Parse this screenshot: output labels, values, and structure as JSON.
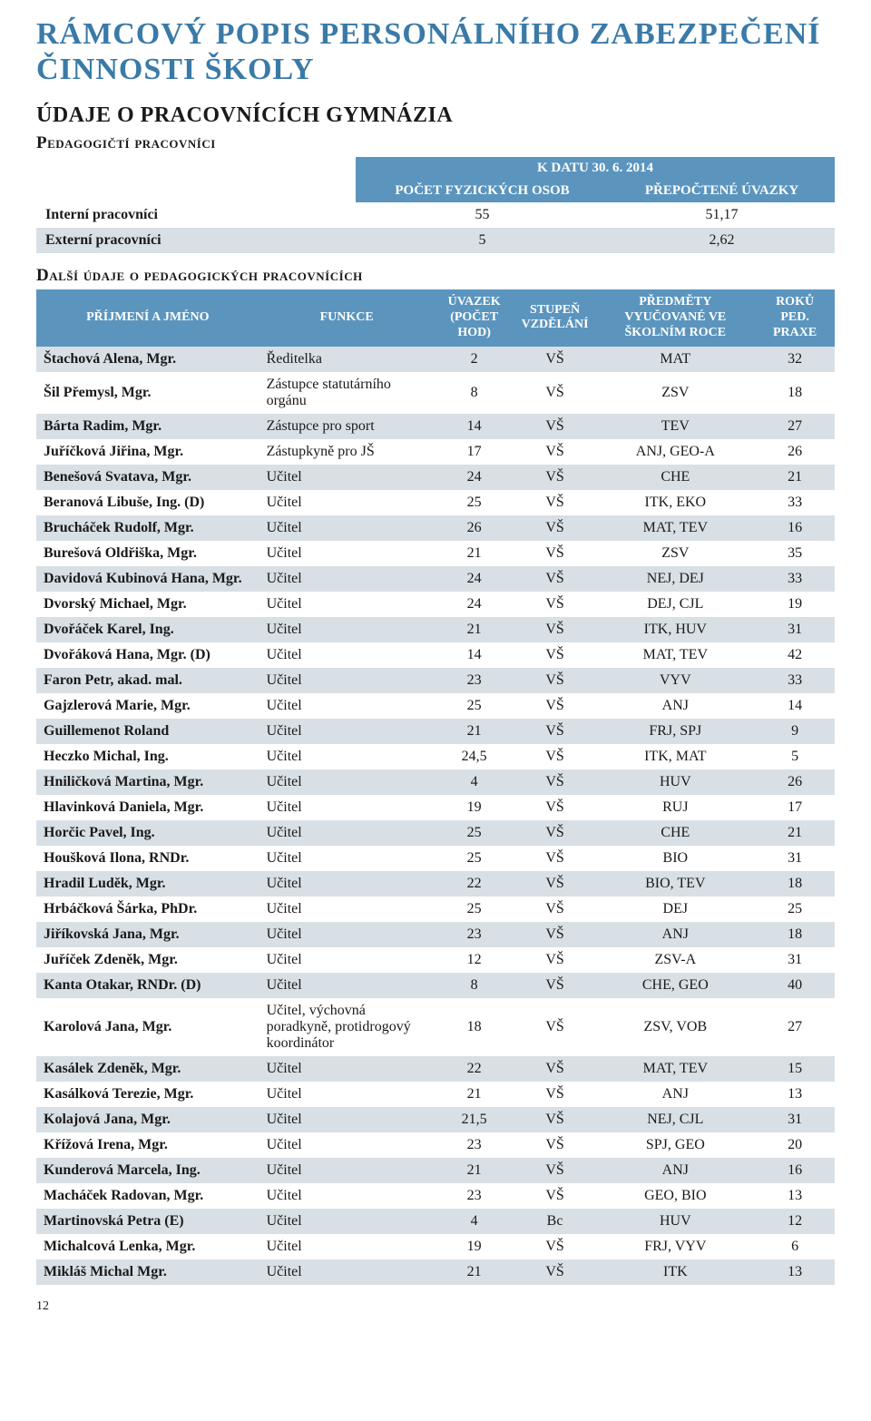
{
  "title": "Rámcový popis personálního zabezpečení činnosti školy",
  "section": "Údaje o pracovnících gymnázia",
  "subsection": "Pedagogičtí pracovníci",
  "summary_table": {
    "top_header": "K DATU 30. 6. 2014",
    "col_a": "POČET FYZICKÝCH OSOB",
    "col_b": "PŘEPOČTENÉ ÚVAZKY",
    "rows": [
      {
        "label": "Interní pracovníci",
        "a": "55",
        "b": "51,17"
      },
      {
        "label": "Externí pracovníci",
        "a": "5",
        "b": "2,62"
      }
    ]
  },
  "staff_heading": "Další údaje o pedagogických pracovnících",
  "staff_table": {
    "headers": {
      "name": "PŘÍJMENÍ A JMÉNO",
      "role": "FUNKCE",
      "hours": "ÚVAZEK (POČET HOD)",
      "edu": "STUPEŇ VZDĚLÁNÍ",
      "subj": "PŘEDMĚTY VYUČOVANÉ VE ŠKOLNÍM ROCE",
      "years": "ROKŮ PED. PRAXE"
    },
    "rows": [
      [
        "Štachová Alena, Mgr.",
        "Ředitelka",
        "2",
        "VŠ",
        "MAT",
        "32"
      ],
      [
        "Šil Přemysl, Mgr.",
        "Zástupce statutárního orgánu",
        "8",
        "VŠ",
        "ZSV",
        "18"
      ],
      [
        "Bárta Radim, Mgr.",
        "Zástupce pro sport",
        "14",
        "VŠ",
        "TEV",
        "27"
      ],
      [
        "Juříčková Jiřina, Mgr.",
        "Zástupkyně pro JŠ",
        "17",
        "VŠ",
        "ANJ, GEO-A",
        "26"
      ],
      [
        "Benešová Svatava, Mgr.",
        "Učitel",
        "24",
        "VŠ",
        "CHE",
        "21"
      ],
      [
        "Beranová Libuše, Ing. (D)",
        "Učitel",
        "25",
        "VŠ",
        "ITK, EKO",
        "33"
      ],
      [
        "Brucháček Rudolf, Mgr.",
        "Učitel",
        "26",
        "VŠ",
        "MAT, TEV",
        "16"
      ],
      [
        "Burešová Oldřiška, Mgr.",
        "Učitel",
        "21",
        "VŠ",
        "ZSV",
        "35"
      ],
      [
        "Davidová Kubinová Hana, Mgr.",
        "Učitel",
        "24",
        "VŠ",
        "NEJ, DEJ",
        "33"
      ],
      [
        "Dvorský Michael, Mgr.",
        "Učitel",
        "24",
        "VŠ",
        "DEJ, CJL",
        "19"
      ],
      [
        "Dvořáček Karel, Ing.",
        "Učitel",
        "21",
        "VŠ",
        "ITK, HUV",
        "31"
      ],
      [
        "Dvořáková Hana, Mgr. (D)",
        "Učitel",
        "14",
        "VŠ",
        "MAT, TEV",
        "42"
      ],
      [
        "Faron Petr, akad. mal.",
        "Učitel",
        "23",
        "VŠ",
        "VYV",
        "33"
      ],
      [
        "Gajzlerová Marie, Mgr.",
        "Učitel",
        "25",
        "VŠ",
        "ANJ",
        "14"
      ],
      [
        "Guillemenot Roland",
        "Učitel",
        "21",
        "VŠ",
        "FRJ, SPJ",
        "9"
      ],
      [
        "Heczko Michal, Ing.",
        "Učitel",
        "24,5",
        "VŠ",
        "ITK, MAT",
        "5"
      ],
      [
        "Hniličková Martina, Mgr.",
        "Učitel",
        "4",
        "VŠ",
        "HUV",
        "26"
      ],
      [
        "Hlavinková Daniela, Mgr.",
        "Učitel",
        "19",
        "VŠ",
        "RUJ",
        "17"
      ],
      [
        "Horčic Pavel, Ing.",
        "Učitel",
        "25",
        "VŠ",
        "CHE",
        "21"
      ],
      [
        "Houšková Ilona, RNDr.",
        "Učitel",
        "25",
        "VŠ",
        "BIO",
        "31"
      ],
      [
        "Hradil Luděk, Mgr.",
        "Učitel",
        "22",
        "VŠ",
        "BIO, TEV",
        "18"
      ],
      [
        "Hrbáčková Šárka, PhDr.",
        "Učitel",
        "25",
        "VŠ",
        "DEJ",
        "25"
      ],
      [
        "Jiříkovská Jana, Mgr.",
        "Učitel",
        "23",
        "VŠ",
        "ANJ",
        "18"
      ],
      [
        "Juříček Zdeněk, Mgr.",
        "Učitel",
        "12",
        "VŠ",
        "ZSV-A",
        "31"
      ],
      [
        "Kanta Otakar, RNDr. (D)",
        "Učitel",
        "8",
        "VŠ",
        "CHE, GEO",
        "40"
      ],
      [
        "Karolová Jana, Mgr.",
        "Učitel, výchovná poradkyně, protidrogový koordinátor",
        "18",
        "VŠ",
        "ZSV, VOB",
        "27"
      ],
      [
        "Kasálek Zdeněk, Mgr.",
        "Učitel",
        "22",
        "VŠ",
        "MAT, TEV",
        "15"
      ],
      [
        "Kasálková Terezie, Mgr.",
        "Učitel",
        "21",
        "VŠ",
        "ANJ",
        "13"
      ],
      [
        "Kolajová Jana, Mgr.",
        "Učitel",
        "21,5",
        "VŠ",
        "NEJ, CJL",
        "31"
      ],
      [
        "Křížová Irena, Mgr.",
        "Učitel",
        "23",
        "VŠ",
        "SPJ, GEO",
        "20"
      ],
      [
        "Kunderová Marcela, Ing.",
        "Učitel",
        "21",
        "VŠ",
        "ANJ",
        "16"
      ],
      [
        "Macháček Radovan, Mgr.",
        "Učitel",
        "23",
        "VŠ",
        "GEO, BIO",
        "13"
      ],
      [
        "Martinovská Petra (E)",
        "Učitel",
        "4",
        "Bc",
        "HUV",
        "12"
      ],
      [
        "Michalcová Lenka, Mgr.",
        "Učitel",
        "19",
        "VŠ",
        "FRJ, VYV",
        "6"
      ],
      [
        "Mikláš Michal Mgr.",
        "Učitel",
        "21",
        "VŠ",
        "ITK",
        "13"
      ]
    ]
  },
  "page_number": "12"
}
